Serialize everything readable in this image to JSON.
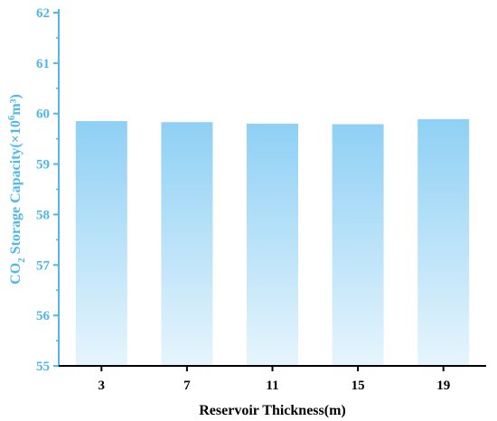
{
  "colors": {
    "axis_y": "#4fb8ea",
    "axis_x": "#000000",
    "text_x": "#000000",
    "bar_top": "#8fd0f4",
    "bar_bottom": "#e6f5fd"
  },
  "chart_data": {
    "type": "bar",
    "categories": [
      "3",
      "7",
      "11",
      "15",
      "19"
    ],
    "values": [
      59.85,
      59.83,
      59.8,
      59.79,
      59.89
    ],
    "xlabel": "Reservoir Thickness(m)",
    "ylabel": {
      "prefix": "CO",
      "sub": "2",
      "mid": " Storage Capacity(×10",
      "sup": "6",
      "suffix": "m³)"
    },
    "ylim": [
      55,
      62
    ],
    "yticks": [
      "55",
      "56",
      "57",
      "58",
      "59",
      "60",
      "61",
      "62"
    ],
    "grid": false,
    "legend": "none"
  }
}
